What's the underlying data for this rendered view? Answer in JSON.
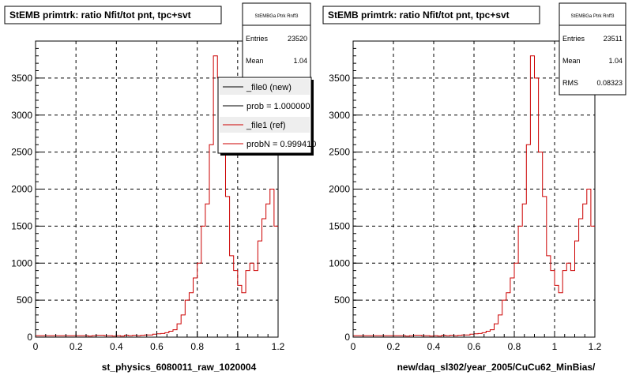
{
  "footer_text": "",
  "chart_data": [
    {
      "type": "histogram",
      "title": "StEMB primtrk: ratio Nfit/tot pnt, tpc+svt",
      "xlabel": "st_physics_6080011_raw_1020004",
      "xlim": [
        0,
        1.2
      ],
      "ylim": [
        0,
        4000
      ],
      "x_ticks": [
        0,
        0.2,
        0.4,
        0.6,
        0.8,
        1,
        1.2
      ],
      "y_ticks": [
        0,
        500,
        1000,
        1500,
        2000,
        2500,
        3000,
        3500
      ],
      "grid": true,
      "stats": {
        "name": "StEMBGa Ptrk Rnff3",
        "rows": [
          {
            "label": "Entries",
            "value": "23520"
          },
          {
            "label": "Mean",
            "value": "1.04"
          }
        ]
      },
      "legend": {
        "placement": "top-right",
        "entries": [
          {
            "label": "_file0 (new)",
            "color": "#000000"
          },
          {
            "label": "prob = 1.000000",
            "color": "#000000"
          },
          {
            "label": "_file1 (ref)",
            "color": "#cc0000"
          },
          {
            "label": "probN = 0.999410",
            "color": "#cc0000"
          }
        ]
      },
      "series": [
        {
          "name": "_file0 (new)",
          "color": "#cc0000",
          "bin_edges_start": 0,
          "bin_width": 0.02,
          "values": [
            20,
            20,
            20,
            20,
            20,
            20,
            20,
            20,
            20,
            20,
            20,
            20,
            20,
            15,
            20,
            25,
            25,
            20,
            20,
            15,
            20,
            15,
            25,
            20,
            25,
            20,
            25,
            30,
            30,
            40,
            45,
            50,
            60,
            80,
            100,
            180,
            300,
            500,
            600,
            800,
            1000,
            1500,
            1800,
            2600,
            3800,
            3500,
            2500,
            1900,
            1100,
            900,
            700,
            600,
            900,
            1000,
            900,
            1300,
            1600,
            1800,
            2000,
            1500
          ]
        }
      ]
    },
    {
      "type": "histogram",
      "title": "StEMB primtrk: ratio Nfit/tot pnt, tpc+svt",
      "xlabel": "new/daq_sl302/year_2005/CuCu62_MinBias/",
      "xlim": [
        0,
        1.2
      ],
      "ylim": [
        0,
        4000
      ],
      "x_ticks": [
        0,
        0.2,
        0.4,
        0.6,
        0.8,
        1,
        1.2
      ],
      "y_ticks": [
        0,
        500,
        1000,
        1500,
        2000,
        2500,
        3000,
        3500
      ],
      "grid": true,
      "stats": {
        "name": "StEMBGa Ptrk Rnff3",
        "rows": [
          {
            "label": "Entries",
            "value": "23511"
          },
          {
            "label": "Mean",
            "value": "1.04"
          },
          {
            "label": "RMS",
            "value": "0.08323"
          }
        ]
      },
      "series": [
        {
          "name": "new",
          "color": "#cc0000",
          "bin_edges_start": 0,
          "bin_width": 0.02,
          "values": [
            20,
            20,
            20,
            20,
            20,
            20,
            20,
            20,
            20,
            20,
            20,
            20,
            20,
            15,
            20,
            25,
            25,
            20,
            20,
            15,
            20,
            15,
            25,
            20,
            25,
            20,
            25,
            30,
            30,
            40,
            45,
            50,
            60,
            80,
            100,
            180,
            300,
            500,
            600,
            800,
            1000,
            1500,
            1800,
            2600,
            3800,
            3500,
            2500,
            1900,
            1100,
            900,
            700,
            600,
            900,
            1000,
            900,
            1300,
            1600,
            1800,
            2000,
            1500
          ]
        }
      ]
    }
  ]
}
